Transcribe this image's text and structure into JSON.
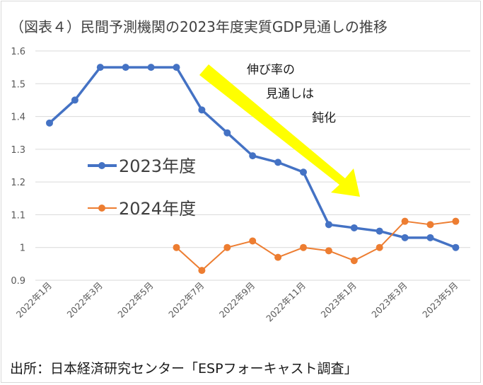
{
  "title": "（図表４）民間予測機関の2023年度実質GDP見通しの推移",
  "source": "出所：日本経済研究センター「ESPフォーキャスト調査」",
  "chart_data": {
    "type": "line",
    "title": "（図表４）民間予測機関の2023年度実質GDP見通しの推移",
    "ylim": [
      0.9,
      1.6
    ],
    "yticks": [
      0.9,
      1,
      1.1,
      1.2,
      1.3,
      1.4,
      1.5,
      1.6
    ],
    "ytick_labels": [
      "0.9",
      "1",
      "1.1",
      "1.2",
      "1.3",
      "1.4",
      "1.5",
      "1.6"
    ],
    "categories": [
      "2022年1月",
      "2022年2月",
      "2022年3月",
      "2022年4月",
      "2022年5月",
      "2022年6月",
      "2022年7月",
      "2022年8月",
      "2022年9月",
      "2022年10月",
      "2022年11月",
      "2022年12月",
      "2023年1月",
      "2023年2月",
      "2023年3月",
      "2023年4月",
      "2023年5月"
    ],
    "xtick_labels": [
      {
        "index": 0,
        "label": "2022年1月"
      },
      {
        "index": 2,
        "label": "2022年3月"
      },
      {
        "index": 4,
        "label": "2022年5月"
      },
      {
        "index": 6,
        "label": "2022年7月"
      },
      {
        "index": 8,
        "label": "2022年9月"
      },
      {
        "index": 10,
        "label": "2022年11月"
      },
      {
        "index": 12,
        "label": "2023年1月"
      },
      {
        "index": 14,
        "label": "2023年3月"
      },
      {
        "index": 16,
        "label": "2023年5月"
      }
    ],
    "grid": true,
    "series": [
      {
        "name": "2023年度",
        "color": "#4472c4",
        "values": [
          1.38,
          1.45,
          1.55,
          1.55,
          1.55,
          1.55,
          1.42,
          1.35,
          1.28,
          1.26,
          1.23,
          1.07,
          1.06,
          1.05,
          1.03,
          1.03,
          1.0
        ]
      },
      {
        "name": "2024年度",
        "color": "#ed7d31",
        "values": [
          null,
          null,
          null,
          null,
          null,
          1.0,
          0.93,
          1.0,
          1.02,
          0.97,
          1.0,
          0.99,
          0.96,
          1.0,
          1.08,
          1.07,
          1.08
        ]
      }
    ],
    "annotation": {
      "lines": [
        "伸び率の",
        "見通しは",
        "鈍化"
      ],
      "arrow_color": "#ffff00"
    }
  }
}
